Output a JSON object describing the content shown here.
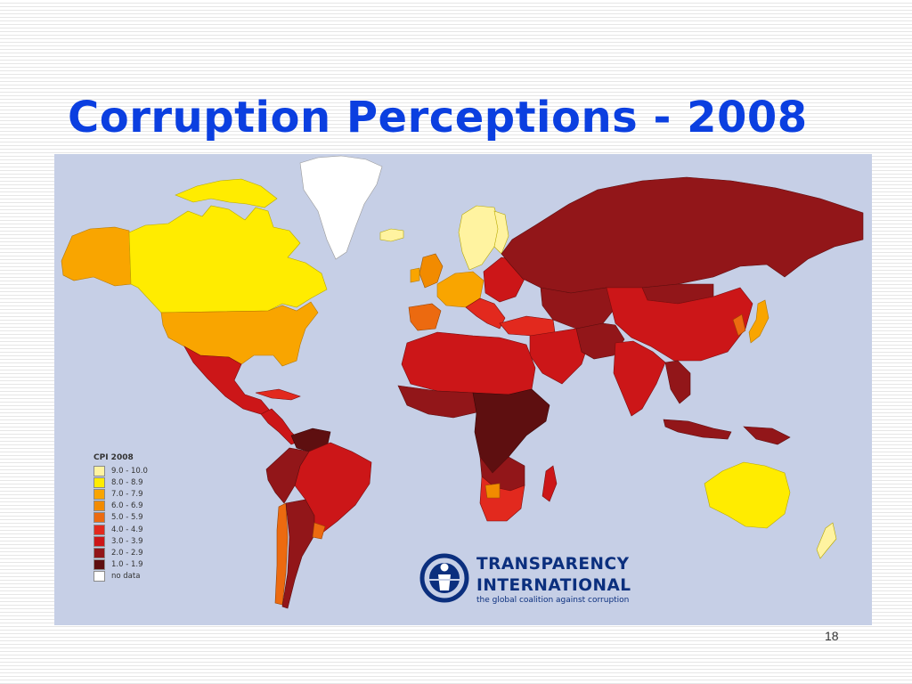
{
  "slide": {
    "title": "Corruption Perceptions - 2008",
    "page_number": "18"
  },
  "map": {
    "ocean_color": "#c6cfe6",
    "legend": {
      "title": "CPI 2008",
      "items": [
        {
          "label": "9.0 - 10.0",
          "color": "#fff3a0"
        },
        {
          "label": "8.0 - 8.9",
          "color": "#ffec00"
        },
        {
          "label": "7.0 - 7.9",
          "color": "#f9a500"
        },
        {
          "label": "6.0 - 6.9",
          "color": "#f28b00"
        },
        {
          "label": "5.0 - 5.9",
          "color": "#ec6a10"
        },
        {
          "label": "4.0 - 4.9",
          "color": "#e2291e"
        },
        {
          "label": "3.0 - 3.9",
          "color": "#cc1618"
        },
        {
          "label": "2.0 - 2.9",
          "color": "#921619"
        },
        {
          "label": "1.0 - 1.9",
          "color": "#5e0f10"
        },
        {
          "label": "no data",
          "color": "#ffffff"
        }
      ]
    },
    "logo": {
      "line1": "TRANSPARENCY",
      "line2": "INTERNATIONAL",
      "tagline": "the global coalition against corruption",
      "color": "#0b2f7e"
    }
  }
}
